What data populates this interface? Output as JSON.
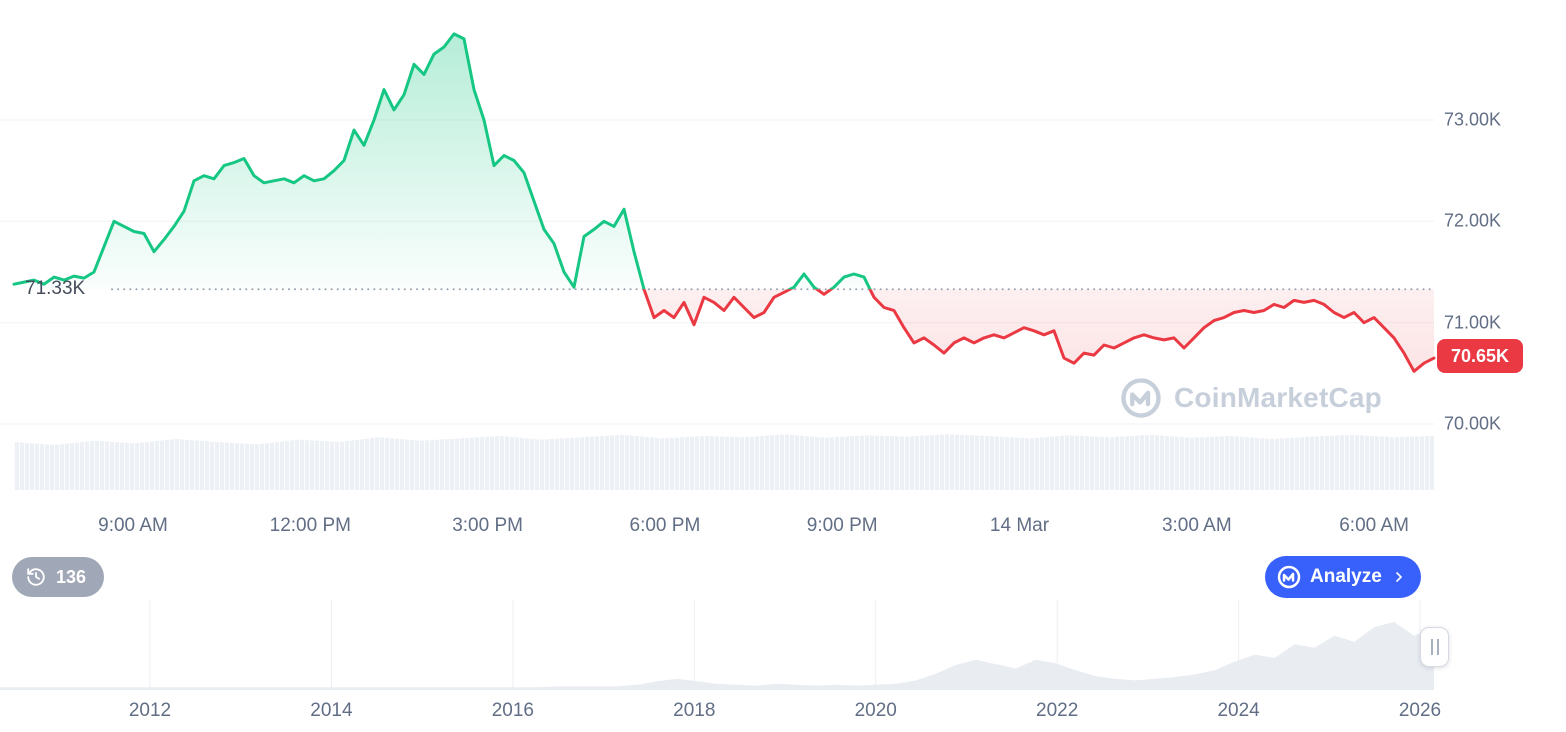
{
  "watermark": {
    "text": "CoinMarketCap"
  },
  "controls": {
    "history_count": "136",
    "analyze_label": "Analyze"
  },
  "colors": {
    "up": "#16c784",
    "down": "#ea3943",
    "accent_blue": "#3861fb",
    "badge_gray": "#a0a7b7",
    "axis_text": "#616e85",
    "watermark_gray": "#c7cfdb",
    "grid": "#f0f2f6",
    "volume_fill": "#edf0f5",
    "brush_fill": "#e9edf2",
    "dotted_line": "#9aa3b2"
  },
  "chart_data": [
    {
      "type": "line",
      "title": "intraday-price-chart",
      "unit": "K USD",
      "baseline_value": 71.33,
      "baseline_label": "71.33K",
      "last_price": 70.65,
      "last_price_label": "70.65K",
      "ylim": [
        70.0,
        74.0
      ],
      "y_axis": {
        "ticks": [
          {
            "label": "73.00K",
            "value": 73
          },
          {
            "label": "72.00K",
            "value": 72
          },
          {
            "label": "71.00K",
            "value": 71
          },
          {
            "label": "70.00K",
            "value": 70
          }
        ]
      },
      "x_axis": {
        "ticks": [
          "9:00 AM",
          "12:00 PM",
          "3:00 PM",
          "6:00 PM",
          "9:00 PM",
          "14 Mar",
          "3:00 AM",
          "6:00 AM"
        ]
      },
      "prices_k": [
        71.38,
        71.4,
        71.42,
        71.38,
        71.45,
        71.42,
        71.46,
        71.44,
        71.5,
        71.75,
        72.0,
        71.95,
        71.9,
        71.88,
        71.7,
        71.82,
        71.95,
        72.1,
        72.4,
        72.45,
        72.42,
        72.55,
        72.58,
        72.62,
        72.45,
        72.38,
        72.4,
        72.42,
        72.38,
        72.45,
        72.4,
        72.42,
        72.5,
        72.6,
        72.9,
        72.75,
        73.0,
        73.3,
        73.1,
        73.25,
        73.55,
        73.45,
        73.65,
        73.72,
        73.85,
        73.8,
        73.3,
        73.0,
        72.55,
        72.65,
        72.6,
        72.48,
        72.2,
        71.92,
        71.78,
        71.5,
        71.35,
        71.85,
        71.92,
        72.0,
        71.95,
        72.12,
        71.7,
        71.33,
        71.05,
        71.12,
        71.05,
        71.2,
        70.98,
        71.25,
        71.2,
        71.12,
        71.25,
        71.15,
        71.05,
        71.1,
        71.25,
        71.3,
        71.35,
        71.48,
        71.35,
        71.28,
        71.35,
        71.45,
        71.48,
        71.45,
        71.25,
        71.15,
        71.12,
        70.95,
        70.8,
        70.85,
        70.78,
        70.7,
        70.8,
        70.85,
        70.8,
        70.85,
        70.88,
        70.85,
        70.9,
        70.95,
        70.92,
        70.88,
        70.92,
        70.65,
        70.6,
        70.7,
        70.68,
        70.78,
        70.75,
        70.8,
        70.85,
        70.88,
        70.85,
        70.83,
        70.85,
        70.75,
        70.85,
        70.95,
        71.02,
        71.05,
        71.1,
        71.12,
        71.1,
        71.12,
        71.18,
        71.15,
        71.22,
        71.2,
        71.22,
        71.18,
        71.1,
        71.05,
        71.1,
        71.0,
        71.05,
        70.95,
        70.85,
        70.7,
        70.52,
        70.6,
        70.65
      ],
      "volume_rel": [
        0.8,
        0.75,
        0.82,
        0.78,
        0.85,
        0.8,
        0.76,
        0.84,
        0.8,
        0.88,
        0.82,
        0.86,
        0.9,
        0.84,
        0.88,
        0.92,
        0.86,
        0.9,
        0.88,
        0.93,
        0.87,
        0.91,
        0.89,
        0.93,
        0.9,
        0.86,
        0.91,
        0.88,
        0.92,
        0.87,
        0.9,
        0.85,
        0.89,
        0.92,
        0.88,
        0.9
      ]
    },
    {
      "type": "area",
      "title": "all-time-history-brush",
      "x_axis": {
        "ticks": [
          "2012",
          "2014",
          "2016",
          "2018",
          "2020",
          "2022",
          "2024",
          "2026"
        ]
      },
      "values_rel": [
        0.02,
        0.02,
        0.02,
        0.02,
        0.02,
        0.02,
        0.02,
        0.02,
        0.02,
        0.02,
        0.02,
        0.02,
        0.02,
        0.02,
        0.02,
        0.02,
        0.02,
        0.02,
        0.02,
        0.02,
        0.02,
        0.02,
        0.02,
        0.02,
        0.02,
        0.02,
        0.02,
        0.02,
        0.03,
        0.03,
        0.03,
        0.03,
        0.05,
        0.09,
        0.12,
        0.09,
        0.06,
        0.05,
        0.04,
        0.06,
        0.05,
        0.04,
        0.05,
        0.04,
        0.05,
        0.06,
        0.1,
        0.18,
        0.28,
        0.34,
        0.29,
        0.24,
        0.34,
        0.3,
        0.22,
        0.15,
        0.12,
        0.1,
        0.12,
        0.14,
        0.17,
        0.22,
        0.32,
        0.4,
        0.36,
        0.52,
        0.48,
        0.62,
        0.55,
        0.72,
        0.78,
        0.62,
        0.72
      ]
    }
  ]
}
